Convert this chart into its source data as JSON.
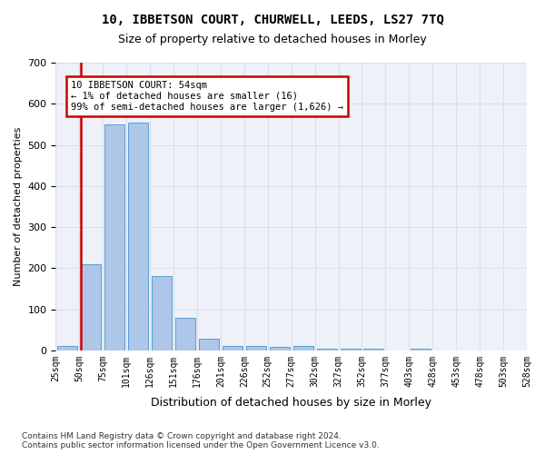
{
  "title_line1": "10, IBBETSON COURT, CHURWELL, LEEDS, LS27 7TQ",
  "title_line2": "Size of property relative to detached houses in Morley",
  "xlabel": "Distribution of detached houses by size in Morley",
  "ylabel": "Number of detached properties",
  "bar_color": "#aec6e8",
  "bar_edge_color": "#5a9fd4",
  "grid_color": "#d8dff0",
  "bg_color": "#eef2f8",
  "vline_color": "#cc0000",
  "annotation_box_text": "10 IBBETSON COURT: 54sqm\n← 1% of detached houses are smaller (16)\n99% of semi-detached houses are larger (1,626) →",
  "annotation_box_color": "#cc0000",
  "tick_labels": [
    "25sqm",
    "50sqm",
    "75sqm",
    "101sqm",
    "126sqm",
    "151sqm",
    "176sqm",
    "201sqm",
    "226sqm",
    "252sqm",
    "277sqm",
    "302sqm",
    "327sqm",
    "352sqm",
    "377sqm",
    "403sqm",
    "428sqm",
    "453sqm",
    "478sqm",
    "503sqm",
    "528sqm"
  ],
  "values": [
    10,
    210,
    550,
    555,
    180,
    78,
    28,
    10,
    10,
    8,
    10,
    5,
    5,
    5,
    0,
    5,
    0,
    0,
    0,
    0
  ],
  "ylim": [
    0,
    700
  ],
  "yticks": [
    0,
    100,
    200,
    300,
    400,
    500,
    600,
    700
  ],
  "footnote": "Contains HM Land Registry data © Crown copyright and database right 2024.\nContains public sector information licensed under the Open Government Licence v3.0."
}
